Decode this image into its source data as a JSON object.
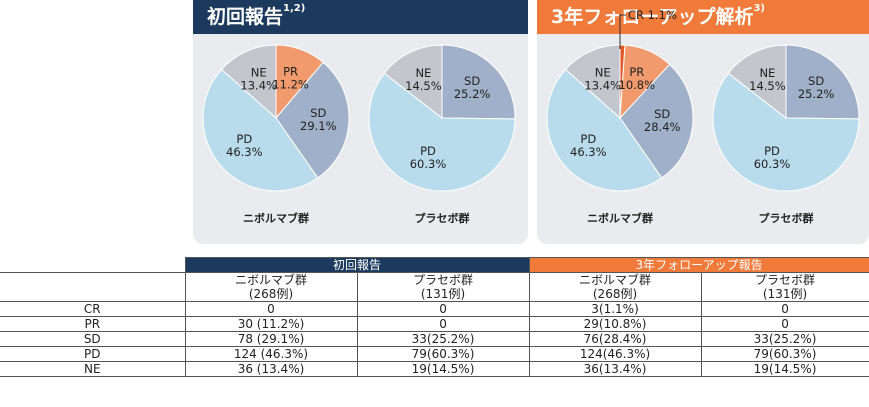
{
  "panels": [
    {
      "title": "初回報告",
      "title_sup": "1,2)",
      "header_color": "#1c3a5e",
      "pies": [
        {
          "group": "ニボルマブ群",
          "slices": [
            {
              "name": "PR",
              "value": 11.2,
              "label": "PR",
              "value_label": "11.2%",
              "color": "#f19a6e"
            },
            {
              "name": "SD",
              "value": 29.1,
              "label": "SD",
              "value_label": "29.1%",
              "color": "#9fb0c8"
            },
            {
              "name": "PD",
              "value": 46.3,
              "label": "PD",
              "value_label": "46.3%",
              "color": "#b8dcec"
            },
            {
              "name": "NE",
              "value": 13.4,
              "label": "NE",
              "value_label": "13.4%",
              "color": "#c3c6cc"
            }
          ]
        },
        {
          "group": "プラセボ群",
          "slices": [
            {
              "name": "SD",
              "value": 25.2,
              "label": "SD",
              "value_label": "25.2%",
              "color": "#9fb0c8"
            },
            {
              "name": "PD",
              "value": 60.3,
              "label": "PD",
              "value_label": "60.3%",
              "color": "#b8dcec"
            },
            {
              "name": "NE",
              "value": 14.5,
              "label": "NE",
              "value_label": "14.5%",
              "color": "#c3c6cc"
            }
          ]
        }
      ]
    },
    {
      "title": "3年フォローアップ解析",
      "title_sup": "3)",
      "header_color": "#f07a3a",
      "pies": [
        {
          "group": "ニボルマブ群",
          "callout": "CR 1.1%",
          "slices": [
            {
              "name": "CR",
              "value": 1.1,
              "label": "",
              "value_label": "",
              "color": "#e05a28"
            },
            {
              "name": "PR",
              "value": 10.8,
              "label": "PR",
              "value_label": "10.8%",
              "color": "#f19a6e"
            },
            {
              "name": "SD",
              "value": 28.4,
              "label": "SD",
              "value_label": "28.4%",
              "color": "#9fb0c8"
            },
            {
              "name": "PD",
              "value": 46.3,
              "label": "PD",
              "value_label": "46.3%",
              "color": "#b8dcec"
            },
            {
              "name": "NE",
              "value": 13.4,
              "label": "NE",
              "value_label": "13.4%",
              "color": "#c3c6cc"
            }
          ]
        },
        {
          "group": "プラセボ群",
          "slices": [
            {
              "name": "SD",
              "value": 25.2,
              "label": "SD",
              "value_label": "25.2%",
              "color": "#9fb0c8"
            },
            {
              "name": "PD",
              "value": 60.3,
              "label": "PD",
              "value_label": "60.3%",
              "color": "#b8dcec"
            },
            {
              "name": "NE",
              "value": 14.5,
              "label": "NE",
              "value_label": "14.5%",
              "color": "#c3c6cc"
            }
          ]
        }
      ]
    }
  ],
  "table": {
    "group_headers": [
      "初回報告",
      "3年フォローアップ報告"
    ],
    "column_headers": [
      {
        "name": "ニボルマブ群",
        "n": "(268例)"
      },
      {
        "name": "プラセボ群",
        "n": "(131例)"
      },
      {
        "name": "ニボルマブ群",
        "n": "(268例)"
      },
      {
        "name": "プラセボ群",
        "n": "(131例)"
      }
    ],
    "rows": [
      {
        "label": "CR",
        "cells": [
          "0",
          "0",
          "3(1.1%)",
          "0"
        ]
      },
      {
        "label": "PR",
        "cells": [
          "30 (11.2%)",
          "0",
          "29(10.8%)",
          "0"
        ]
      },
      {
        "label": "SD",
        "cells": [
          "78 (29.1%)",
          "33(25.2%)",
          "76(28.4%)",
          "33(25.2%)"
        ]
      },
      {
        "label": "PD",
        "cells": [
          "124 (46.3%)",
          "79(60.3%)",
          "124(46.3%)",
          "79(60.3%)"
        ]
      },
      {
        "label": "NE",
        "cells": [
          "36 (13.4%)",
          "19(14.5%)",
          "36(13.4%)",
          "19(14.5%)"
        ]
      }
    ]
  },
  "chart_data": [
    {
      "type": "pie",
      "categories": [
        "PR",
        "SD",
        "PD",
        "NE"
      ],
      "values": [
        11.2,
        29.1,
        46.3,
        13.4
      ]
    },
    {
      "type": "pie",
      "categories": [
        "SD",
        "PD",
        "NE"
      ],
      "values": [
        25.2,
        60.3,
        14.5
      ]
    },
    {
      "type": "pie",
      "categories": [
        "CR",
        "PR",
        "SD",
        "PD",
        "NE"
      ],
      "values": [
        1.1,
        10.8,
        28.4,
        46.3,
        13.4
      ]
    },
    {
      "type": "pie",
      "categories": [
        "SD",
        "PD",
        "NE"
      ],
      "values": [
        25.2,
        60.3,
        14.5
      ]
    }
  ]
}
